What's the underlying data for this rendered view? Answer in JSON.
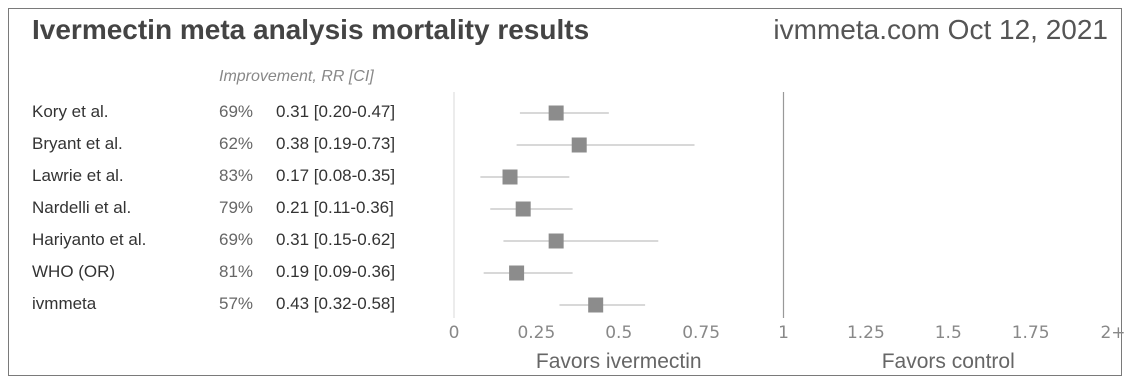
{
  "chart_data": {
    "type": "forest",
    "title": "Ivermectin meta analysis mortality results",
    "source": "ivmmeta.com Oct 12, 2021",
    "column_header": "Improvement, RR [CI]",
    "studies": [
      {
        "name": "Kory et al.",
        "improvement": "69%",
        "rr_text": "0.31 [0.20-0.47]",
        "rr": 0.31,
        "ci_low": 0.2,
        "ci_high": 0.47
      },
      {
        "name": "Bryant et al.",
        "improvement": "62%",
        "rr_text": "0.38 [0.19-0.73]",
        "rr": 0.38,
        "ci_low": 0.19,
        "ci_high": 0.73
      },
      {
        "name": "Lawrie et al.",
        "improvement": "83%",
        "rr_text": "0.17 [0.08-0.35]",
        "rr": 0.17,
        "ci_low": 0.08,
        "ci_high": 0.35
      },
      {
        "name": "Nardelli et al.",
        "improvement": "79%",
        "rr_text": "0.21 [0.11-0.36]",
        "rr": 0.21,
        "ci_low": 0.11,
        "ci_high": 0.36
      },
      {
        "name": "Hariyanto et al.",
        "improvement": "69%",
        "rr_text": "0.31 [0.15-0.62]",
        "rr": 0.31,
        "ci_low": 0.15,
        "ci_high": 0.62
      },
      {
        "name": "WHO (OR)",
        "improvement": "81%",
        "rr_text": "0.19 [0.09-0.36]",
        "rr": 0.19,
        "ci_low": 0.09,
        "ci_high": 0.36
      },
      {
        "name": "ivmmeta",
        "improvement": "57%",
        "rr_text": "0.43 [0.32-0.58]",
        "rr": 0.43,
        "ci_low": 0.32,
        "ci_high": 0.58
      }
    ],
    "x_ticks": [
      "0",
      "0.25",
      "0.5",
      "0.75",
      "1",
      "1.25",
      "1.5",
      "1.75",
      "2+"
    ],
    "x_range": [
      0,
      2
    ],
    "reference_line": 1,
    "favors_left": "Favors ivermectin",
    "favors_right": "Favors control",
    "colors": {
      "marker": "#8c8c8c",
      "ci_line": "#cccccc",
      "axis_line": "#e6e6e6",
      "ref_line": "#999999"
    }
  }
}
